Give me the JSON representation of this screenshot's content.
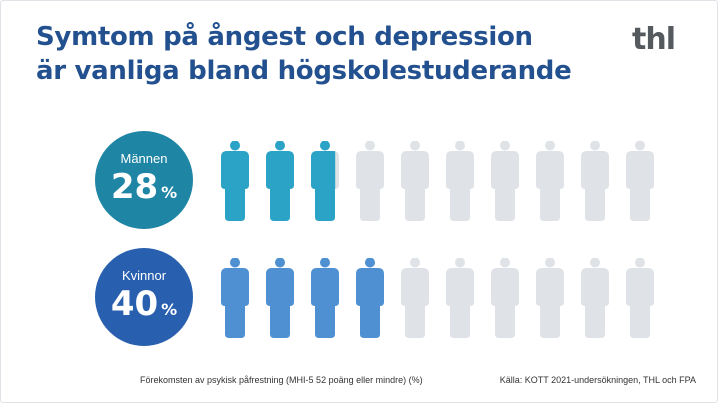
{
  "header": {
    "title_line1": "Symtom på ångest och depression",
    "title_line2": "är vanliga bland högskolestuderande",
    "logo_text": "thl"
  },
  "chart_data": {
    "type": "pictogram",
    "icons_per_group": 10,
    "unit": "%",
    "groups": [
      {
        "label": "Männen",
        "value": 28,
        "fill_color": "#2aa3c6",
        "badge_color": "#1f85a5"
      },
      {
        "label": "Kvinnor",
        "value": 40,
        "fill_color": "#4f90d2",
        "badge_color": "#285fae"
      }
    ],
    "empty_color": "#dfe2e6"
  },
  "footer": {
    "note": "Förekomsten av psykisk påfrestning (MHI-5 52 poäng eller mindre) (%)",
    "source": "Källa: KOTT 2021-undersökningen, THL och FPA"
  }
}
